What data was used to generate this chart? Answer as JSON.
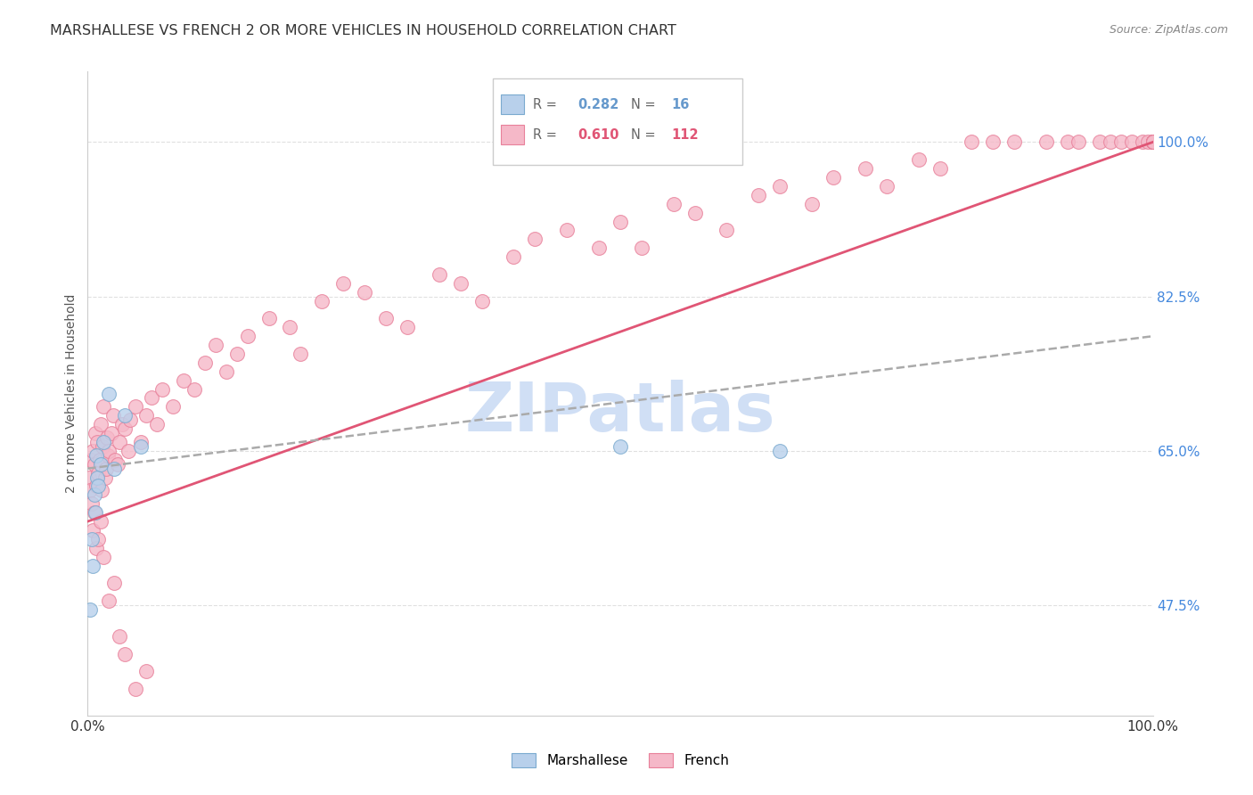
{
  "title": "MARSHALLESE VS FRENCH 2 OR MORE VEHICLES IN HOUSEHOLD CORRELATION CHART",
  "source": "Source: ZipAtlas.com",
  "ylabel": "2 or more Vehicles in Household",
  "xlim": [
    0.0,
    100.0
  ],
  "ylim": [
    35.0,
    108.0
  ],
  "yticks": [
    47.5,
    65.0,
    82.5,
    100.0
  ],
  "xtick_labels": [
    "0.0%",
    "100.0%"
  ],
  "ytick_labels": [
    "47.5%",
    "65.0%",
    "82.5%",
    "100.0%"
  ],
  "marshallese_color": "#b8d0eb",
  "french_color": "#f5b8c8",
  "marshallese_edge_color": "#7aaacf",
  "french_edge_color": "#e8809a",
  "trend_blue": "#6699cc",
  "trend_pink": "#e05575",
  "marker_size": 130,
  "watermark": "ZIPatlas",
  "watermark_color": "#d0dff5",
  "grid_color": "#e0e0e0",
  "marshallese_x": [
    0.2,
    0.4,
    0.5,
    0.6,
    0.7,
    0.8,
    0.9,
    1.0,
    1.2,
    1.5,
    2.0,
    2.5,
    3.5,
    5.0,
    50.0,
    65.0
  ],
  "marshallese_y": [
    47.0,
    55.0,
    52.0,
    60.0,
    58.0,
    64.5,
    62.0,
    61.0,
    63.5,
    66.0,
    71.5,
    63.0,
    69.0,
    65.5,
    65.5,
    65.0
  ],
  "french_x": [
    0.1,
    0.2,
    0.3,
    0.4,
    0.5,
    0.6,
    0.7,
    0.8,
    0.9,
    1.0,
    1.1,
    1.2,
    1.3,
    1.4,
    1.5,
    1.6,
    1.7,
    1.8,
    1.9,
    2.0,
    2.2,
    2.4,
    2.6,
    2.8,
    3.0,
    3.2,
    3.5,
    3.8,
    4.0,
    4.5,
    5.0,
    5.5,
    6.0,
    6.5,
    7.0,
    8.0,
    9.0,
    10.0,
    11.0,
    12.0,
    13.0,
    14.0,
    15.0,
    17.0,
    19.0,
    20.0,
    22.0,
    24.0,
    26.0,
    28.0,
    30.0,
    33.0,
    35.0,
    37.0,
    40.0,
    42.0,
    45.0,
    48.0,
    50.0,
    52.0,
    55.0,
    57.0,
    60.0,
    63.0,
    65.0,
    68.0,
    70.0,
    73.0,
    75.0,
    78.0,
    80.0,
    83.0,
    85.0,
    87.0,
    90.0,
    92.0,
    93.0,
    95.0,
    96.0,
    97.0,
    98.0,
    99.0,
    99.5,
    100.0,
    100.0,
    100.0,
    100.0,
    100.0,
    100.0,
    100.0,
    100.0,
    100.0,
    100.0,
    100.0,
    100.0,
    100.0,
    0.5,
    0.6,
    0.8,
    1.0,
    1.2,
    1.5,
    2.0,
    2.5,
    3.0,
    3.5,
    4.5,
    5.5
  ],
  "french_y": [
    62.0,
    60.5,
    64.0,
    59.0,
    65.0,
    63.5,
    67.0,
    61.0,
    66.0,
    62.5,
    64.0,
    68.0,
    60.5,
    65.5,
    70.0,
    62.0,
    63.0,
    66.5,
    64.5,
    65.0,
    67.0,
    69.0,
    64.0,
    63.5,
    66.0,
    68.0,
    67.5,
    65.0,
    68.5,
    70.0,
    66.0,
    69.0,
    71.0,
    68.0,
    72.0,
    70.0,
    73.0,
    72.0,
    75.0,
    77.0,
    74.0,
    76.0,
    78.0,
    80.0,
    79.0,
    76.0,
    82.0,
    84.0,
    83.0,
    80.0,
    79.0,
    85.0,
    84.0,
    82.0,
    87.0,
    89.0,
    90.0,
    88.0,
    91.0,
    88.0,
    93.0,
    92.0,
    90.0,
    94.0,
    95.0,
    93.0,
    96.0,
    97.0,
    95.0,
    98.0,
    97.0,
    100.0,
    100.0,
    100.0,
    100.0,
    100.0,
    100.0,
    100.0,
    100.0,
    100.0,
    100.0,
    100.0,
    100.0,
    100.0,
    100.0,
    100.0,
    100.0,
    100.0,
    100.0,
    100.0,
    100.0,
    100.0,
    100.0,
    100.0,
    100.0,
    100.0,
    56.0,
    58.0,
    54.0,
    55.0,
    57.0,
    53.0,
    48.0,
    50.0,
    44.0,
    42.0,
    38.0,
    40.0
  ]
}
